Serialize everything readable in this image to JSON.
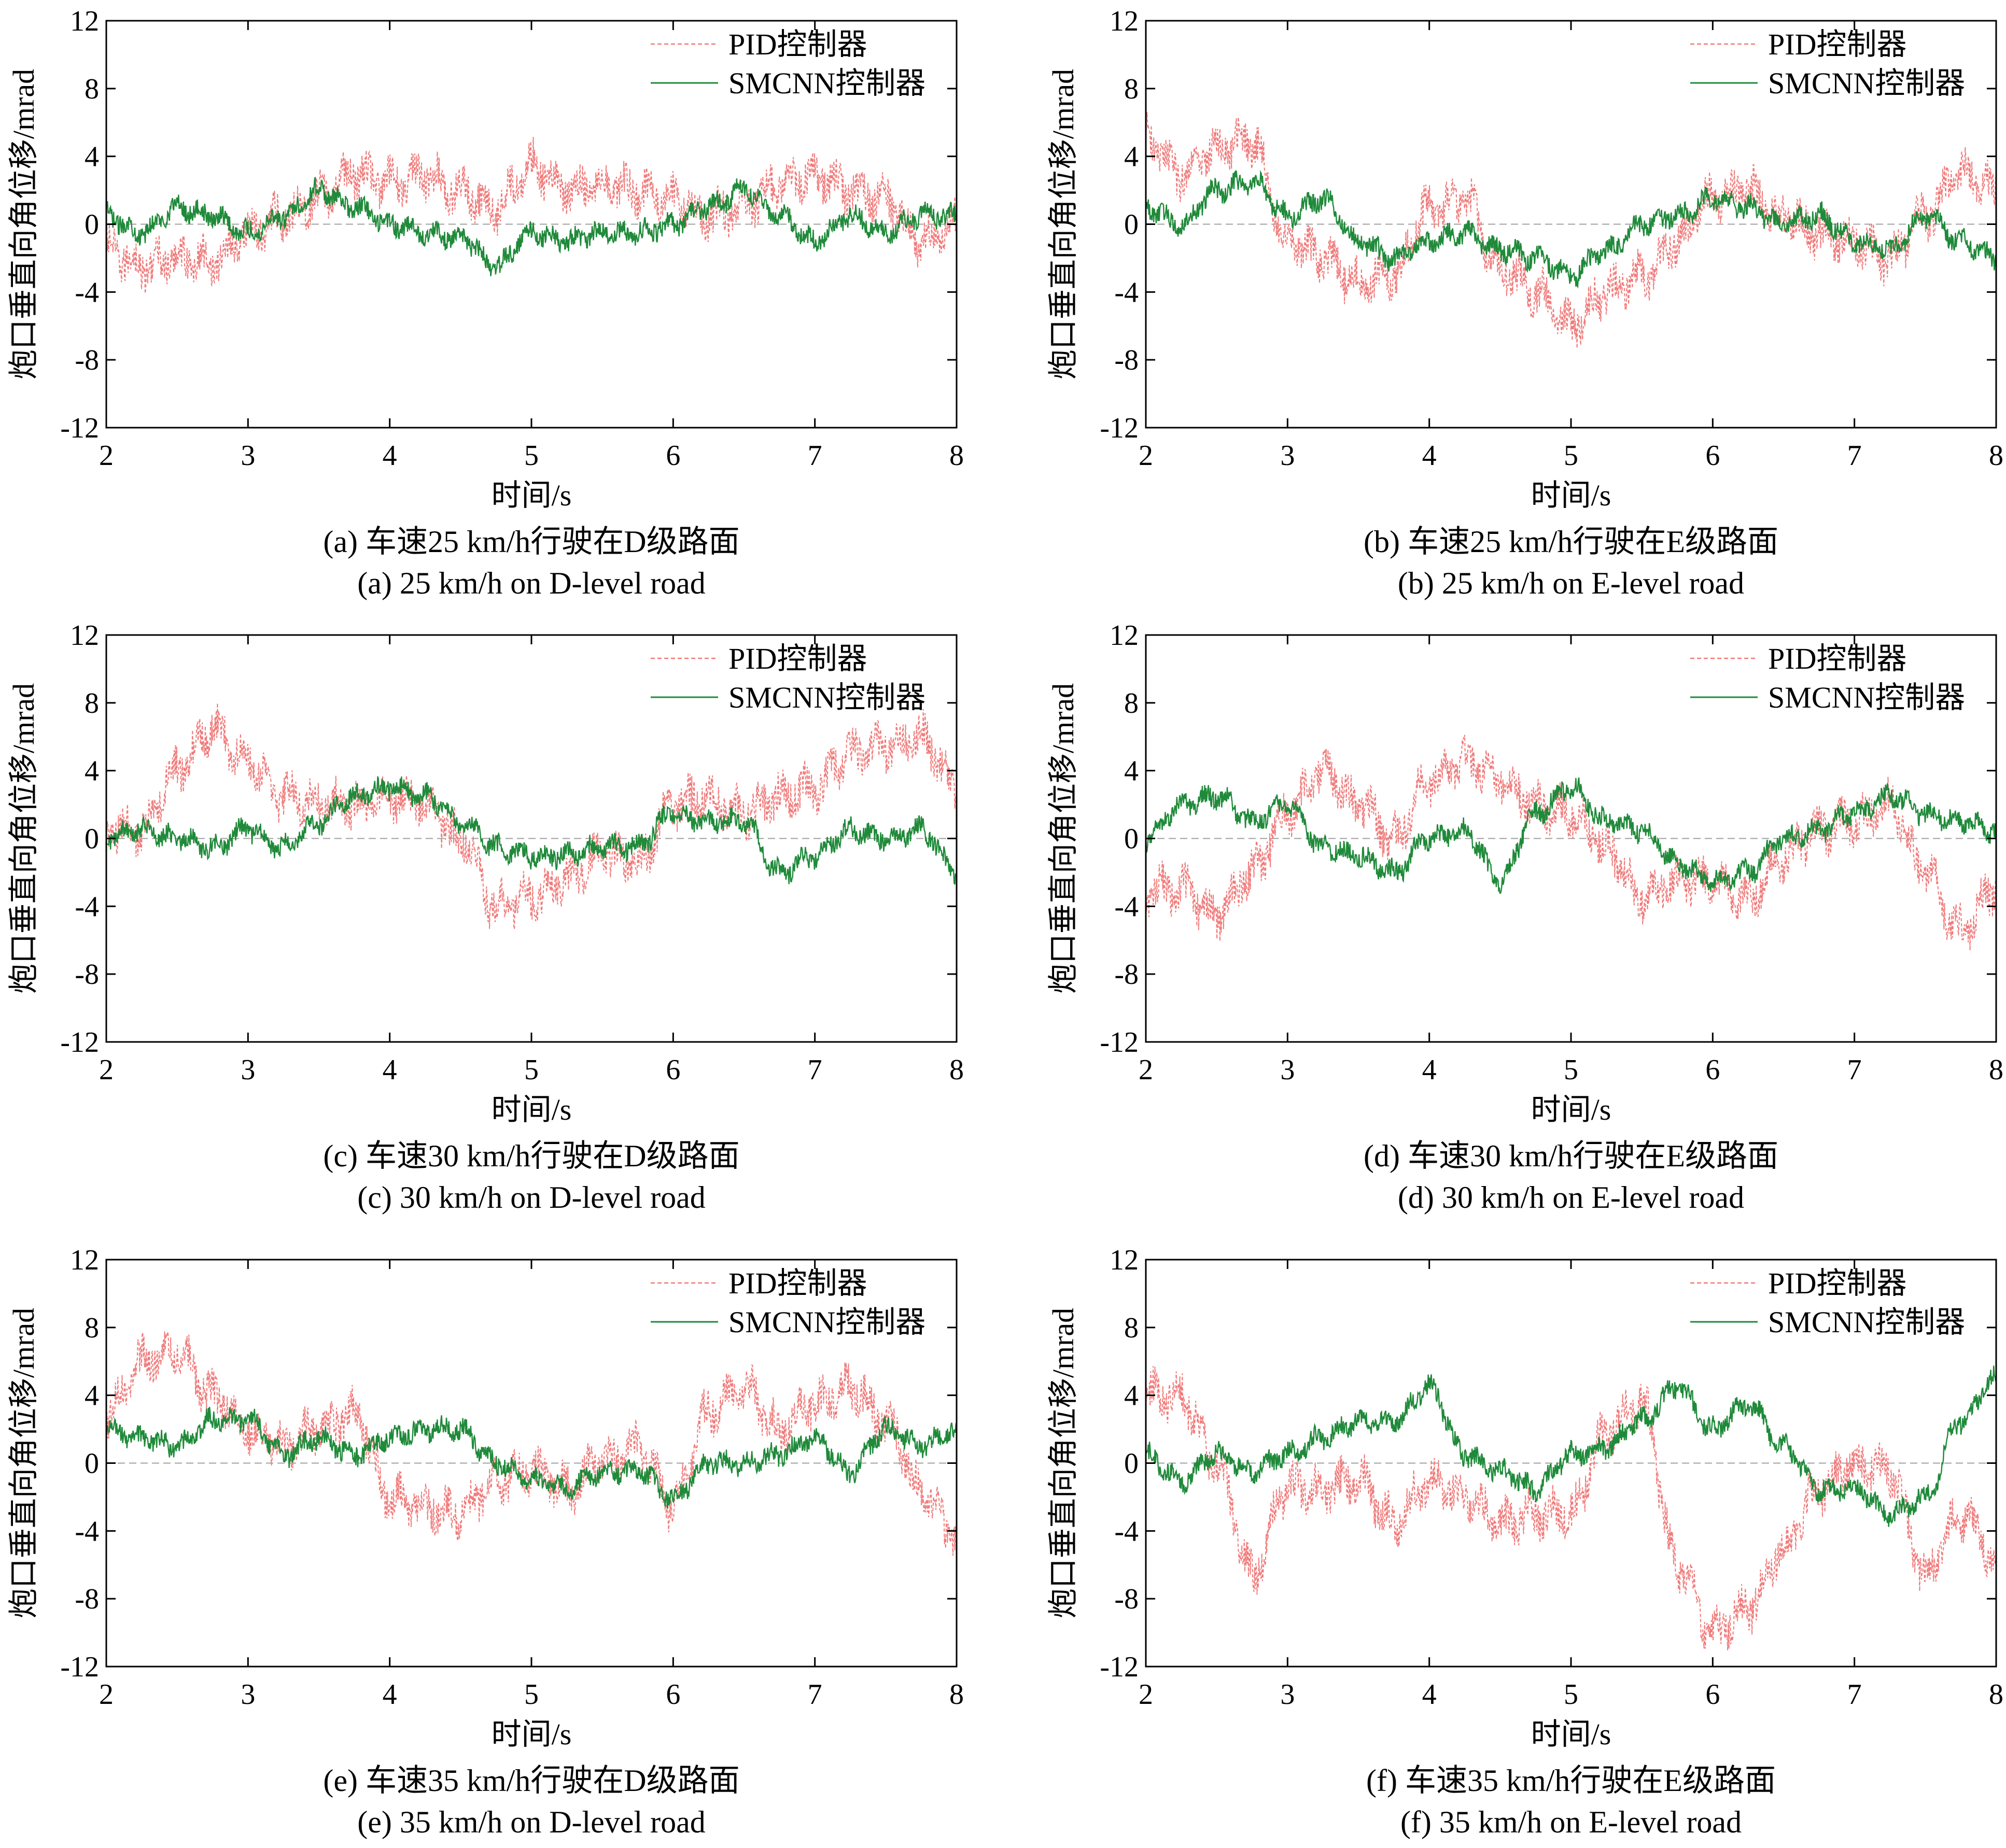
{
  "colors": {
    "pid": "#f07a7a",
    "smcnn": "#1f8a3a",
    "zero_line": "#a0a0a0",
    "axis": "#000000"
  },
  "chart_data": [
    {
      "type": "line",
      "caption_cn": "(a) 车速25 km/h行驶在D级路面",
      "caption_en": "(a) 25 km/h on D-level road",
      "xlabel": "时间/s",
      "ylabel": "炮口垂直向角位移/mrad",
      "xlim": [
        2,
        8
      ],
      "ylim": [
        -12,
        12
      ],
      "xticks": [
        2,
        3,
        4,
        5,
        6,
        7,
        8
      ],
      "yticks": [
        12,
        8,
        4,
        0,
        -4,
        -8,
        -12
      ],
      "legend": {
        "position": "top-right",
        "entries": [
          "PID控制器",
          "SMCNN控制器"
        ]
      },
      "x": [
        2.0,
        2.25,
        2.5,
        2.75,
        3.0,
        3.25,
        3.5,
        3.75,
        4.0,
        4.25,
        4.5,
        4.75,
        5.0,
        5.25,
        5.5,
        5.75,
        6.0,
        6.25,
        6.5,
        6.75,
        7.0,
        7.25,
        7.5,
        7.75,
        8.0
      ],
      "series": [
        {
          "name": "PID控制器",
          "style": "dashed",
          "values": [
            -1.5,
            -2.5,
            -2.0,
            -2.2,
            -0.5,
            0.5,
            1.5,
            3.0,
            2.5,
            2.8,
            2.0,
            1.0,
            3.5,
            2.0,
            2.5,
            2.0,
            1.5,
            0.5,
            1.0,
            2.5,
            2.8,
            2.0,
            1.5,
            -1.0,
            0.0
          ]
        },
        {
          "name": "SMCNN控制器",
          "style": "solid",
          "values": [
            0.5,
            -0.5,
            1.0,
            0.5,
            -0.5,
            0.5,
            2.0,
            1.0,
            0.0,
            -0.5,
            -0.8,
            -2.5,
            -0.5,
            -1.0,
            -0.5,
            -0.5,
            0.0,
            1.0,
            2.0,
            0.5,
            -1.0,
            0.5,
            -0.5,
            0.5,
            0.5
          ]
        }
      ]
    },
    {
      "type": "line",
      "caption_cn": "(b) 车速25 km/h行驶在E级路面",
      "caption_en": "(b) 25 km/h on E-level road",
      "xlabel": "时间/s",
      "ylabel": "炮口垂直向角位移/mrad",
      "xlim": [
        2,
        8
      ],
      "ylim": [
        -12,
        12
      ],
      "xticks": [
        2,
        3,
        4,
        5,
        6,
        7,
        8
      ],
      "yticks": [
        12,
        8,
        4,
        0,
        -4,
        -8,
        -12
      ],
      "legend": {
        "position": "top-right",
        "entries": [
          "PID控制器",
          "SMCNN控制器"
        ]
      },
      "x": [
        2.0,
        2.25,
        2.5,
        2.75,
        3.0,
        3.25,
        3.5,
        3.75,
        4.0,
        4.25,
        4.5,
        4.75,
        5.0,
        5.25,
        5.5,
        5.75,
        6.0,
        6.25,
        6.5,
        6.75,
        7.0,
        7.25,
        7.5,
        7.75,
        8.0
      ],
      "series": [
        {
          "name": "PID控制器",
          "style": "dashed",
          "values": [
            5.0,
            3.0,
            4.5,
            5.0,
            -1.0,
            -2.0,
            -3.5,
            -3.0,
            1.0,
            1.5,
            -2.5,
            -4.0,
            -6.0,
            -4.0,
            -3.0,
            -1.0,
            1.5,
            2.0,
            0.5,
            -0.5,
            -1.0,
            -2.0,
            0.5,
            3.0,
            2.0
          ]
        },
        {
          "name": "SMCNN控制器",
          "style": "solid",
          "values": [
            1.0,
            0.0,
            2.0,
            2.5,
            0.5,
            1.5,
            -1.0,
            -2.0,
            -1.0,
            -0.5,
            -1.5,
            -2.0,
            -3.0,
            -1.5,
            0.0,
            0.5,
            1.5,
            1.0,
            0.0,
            0.5,
            -1.0,
            -1.5,
            0.5,
            -1.0,
            -2.0
          ]
        }
      ]
    },
    {
      "type": "line",
      "caption_cn": "(c) 车速30 km/h行驶在D级路面",
      "caption_en": "(c) 30 km/h on D-level road",
      "xlabel": "时间/s",
      "ylabel": "炮口垂直向角位移/mrad",
      "xlim": [
        2,
        8
      ],
      "ylim": [
        -12,
        12
      ],
      "xticks": [
        2,
        3,
        4,
        5,
        6,
        7,
        8
      ],
      "yticks": [
        12,
        8,
        4,
        0,
        -4,
        -8,
        -12
      ],
      "legend": {
        "position": "top-right",
        "entries": [
          "PID控制器",
          "SMCNN控制器"
        ]
      },
      "x": [
        2.0,
        2.25,
        2.5,
        2.75,
        3.0,
        3.25,
        3.5,
        3.75,
        4.0,
        4.25,
        4.5,
        4.75,
        5.0,
        5.25,
        5.5,
        5.75,
        6.0,
        6.25,
        6.5,
        6.75,
        7.0,
        7.25,
        7.5,
        7.75,
        8.0
      ],
      "series": [
        {
          "name": "PID控制器",
          "style": "dashed",
          "values": [
            0.5,
            0.5,
            4.0,
            6.5,
            4.5,
            2.5,
            2.0,
            2.0,
            2.5,
            2.0,
            0.0,
            -4.0,
            -3.5,
            -2.5,
            -1.0,
            -1.5,
            2.0,
            2.5,
            1.5,
            2.5,
            3.0,
            5.0,
            5.5,
            6.0,
            3.0
          ]
        },
        {
          "name": "SMCNN控制器",
          "style": "solid",
          "values": [
            0.0,
            0.5,
            0.0,
            -0.5,
            0.5,
            -0.5,
            1.0,
            2.5,
            3.0,
            2.5,
            1.0,
            -0.5,
            -1.0,
            -1.0,
            -0.5,
            -0.5,
            1.5,
            1.0,
            1.0,
            -2.0,
            -1.0,
            0.5,
            0.0,
            0.5,
            -2.0
          ]
        }
      ]
    },
    {
      "type": "line",
      "caption_cn": "(d) 车速30 km/h行驶在E级路面",
      "caption_en": "(d) 30 km/h on E-level road",
      "xlabel": "时间/s",
      "ylabel": "炮口垂直向角位移/mrad",
      "xlim": [
        2,
        8
      ],
      "ylim": [
        -12,
        12
      ],
      "xticks": [
        2,
        3,
        4,
        5,
        6,
        7,
        8
      ],
      "yticks": [
        12,
        8,
        4,
        0,
        -4,
        -8,
        -12
      ],
      "legend": {
        "position": "top-right",
        "entries": [
          "PID控制器",
          "SMCNN控制器"
        ]
      },
      "x": [
        2.0,
        2.25,
        2.5,
        2.75,
        3.0,
        3.25,
        3.5,
        3.75,
        4.0,
        4.25,
        4.5,
        4.75,
        5.0,
        5.25,
        5.5,
        5.75,
        6.0,
        6.25,
        6.5,
        6.75,
        7.0,
        7.25,
        7.5,
        7.75,
        8.0
      ],
      "series": [
        {
          "name": "PID控制器",
          "style": "dashed",
          "values": [
            -3.0,
            -3.0,
            -4.5,
            -2.0,
            1.5,
            4.0,
            2.0,
            0.0,
            3.5,
            4.5,
            3.5,
            2.0,
            1.5,
            -0.5,
            -3.5,
            -2.5,
            -2.5,
            -3.5,
            -1.0,
            0.5,
            1.0,
            2.0,
            -2.0,
            -5.5,
            -3.0
          ]
        },
        {
          "name": "SMCNN控制器",
          "style": "solid",
          "values": [
            0.0,
            2.0,
            2.5,
            1.0,
            2.0,
            -0.5,
            -1.0,
            -2.0,
            0.0,
            0.5,
            -2.5,
            1.5,
            3.0,
            1.0,
            0.5,
            -1.5,
            -2.5,
            -2.0,
            0.0,
            0.5,
            1.5,
            2.5,
            1.5,
            1.0,
            0.5
          ]
        }
      ]
    },
    {
      "type": "line",
      "caption_cn": "(e) 车速35 km/h行驶在D级路面",
      "caption_en": "(e)  35 km/h on D-level road",
      "xlabel": "时间/s",
      "ylabel": "炮口垂直向角位移/mrad",
      "xlim": [
        2,
        8
      ],
      "ylim": [
        -12,
        12
      ],
      "xticks": [
        2,
        3,
        4,
        5,
        6,
        7,
        8
      ],
      "yticks": [
        12,
        8,
        4,
        0,
        -4,
        -8,
        -12
      ],
      "legend": {
        "position": "top-right",
        "entries": [
          "PID控制器",
          "SMCNN控制器"
        ]
      },
      "x": [
        2.0,
        2.25,
        2.5,
        2.75,
        3.0,
        3.25,
        3.5,
        3.75,
        4.0,
        4.25,
        4.5,
        4.75,
        5.0,
        5.25,
        5.5,
        5.75,
        6.0,
        6.25,
        6.5,
        6.75,
        7.0,
        7.25,
        7.5,
        7.75,
        8.0
      ],
      "series": [
        {
          "name": "PID控制器",
          "style": "dashed",
          "values": [
            3.0,
            6.0,
            6.5,
            4.0,
            2.0,
            1.0,
            2.0,
            3.0,
            -2.0,
            -2.5,
            -3.0,
            -1.0,
            -0.5,
            -1.5,
            0.0,
            1.0,
            -2.5,
            3.0,
            4.5,
            2.0,
            3.5,
            4.5,
            2.5,
            -1.5,
            -4.5
          ]
        },
        {
          "name": "SMCNN控制器",
          "style": "solid",
          "values": [
            2.0,
            1.5,
            1.0,
            2.5,
            2.5,
            0.5,
            1.5,
            0.5,
            1.5,
            2.0,
            2.0,
            0.0,
            -1.0,
            -1.5,
            -0.5,
            -0.5,
            -2.0,
            0.0,
            0.0,
            0.5,
            1.5,
            -0.5,
            2.0,
            1.0,
            2.0
          ]
        }
      ]
    },
    {
      "type": "line",
      "caption_cn": "(f) 车速35 km/h行驶在E级路面",
      "caption_en": "(f) 35 km/h on E-level road",
      "xlabel": "时间/s",
      "ylabel": "炮口垂直向角位移/mrad",
      "xlim": [
        2,
        8
      ],
      "ylim": [
        -12,
        12
      ],
      "xticks": [
        2,
        3,
        4,
        5,
        6,
        7,
        8
      ],
      "yticks": [
        12,
        8,
        4,
        0,
        -4,
        -8,
        -12
      ],
      "legend": {
        "position": "top-right",
        "entries": [
          "PID控制器",
          "SMCNN控制器"
        ]
      },
      "x": [
        2.0,
        2.25,
        2.5,
        2.75,
        3.0,
        3.25,
        3.5,
        3.75,
        4.0,
        4.25,
        4.5,
        4.75,
        5.0,
        5.25,
        5.5,
        5.75,
        6.0,
        6.25,
        6.5,
        6.75,
        7.0,
        7.25,
        7.5,
        7.75,
        8.0
      ],
      "series": [
        {
          "name": "PID控制器",
          "style": "dashed",
          "values": [
            4.0,
            4.0,
            0.0,
            -6.5,
            -1.5,
            -1.5,
            -1.0,
            -3.5,
            -1.0,
            -2.0,
            -3.5,
            -3.0,
            -3.0,
            2.0,
            3.5,
            -6.0,
            -10.0,
            -8.5,
            -5.0,
            -1.5,
            0.0,
            -0.5,
            -6.5,
            -3.0,
            -5.5
          ]
        },
        {
          "name": "SMCNN控制器",
          "style": "solid",
          "values": [
            0.5,
            -1.0,
            0.5,
            -0.5,
            0.5,
            1.5,
            2.5,
            2.5,
            4.5,
            0.5,
            -0.5,
            -1.5,
            0.5,
            1.0,
            2.5,
            4.5,
            2.0,
            3.5,
            1.0,
            -1.5,
            -1.5,
            -3.0,
            -2.0,
            2.5,
            5.0
          ]
        }
      ]
    }
  ]
}
